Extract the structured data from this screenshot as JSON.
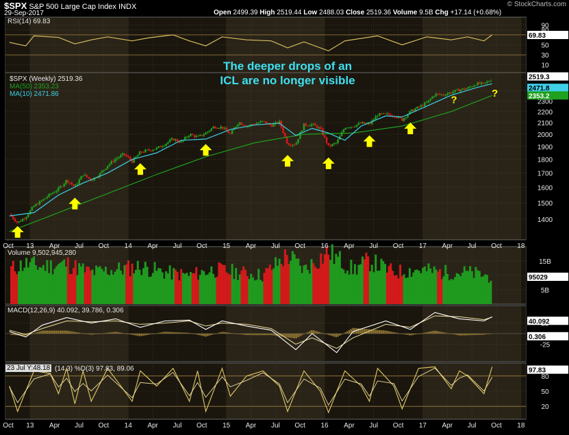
{
  "header": {
    "symbol": "$SPX",
    "name": "S&P 500 Large Cap Index",
    "exchange": "INDX",
    "date": "29-Sep-2017",
    "open_label": "Open",
    "open": "2499.39",
    "high_label": "High",
    "high": "2519.44",
    "low_label": "Low",
    "low": "2488.03",
    "close_label": "Close",
    "close": "2519.36",
    "volume_label": "Volume",
    "volume": "9.5B",
    "chg_label": "Chg",
    "chg": "+17.14 (+0.68%)",
    "watermark": "© StockCharts.com"
  },
  "annotation": {
    "line1": "The deeper drops of an",
    "line2": "ICL are no longer visible",
    "question_mark": "?"
  },
  "colors": {
    "background": "#000000",
    "panel": "#2a2418",
    "panel_alt": "#1a160e",
    "grid": "#4a4030",
    "up": "#1f9a1f",
    "down": "#d21a1a",
    "ma10": "#3fd0e8",
    "ma50": "#1fa01f",
    "indicator": "#d8c060",
    "arrow": "#ffff00",
    "annotation": "#3fe0f0",
    "axis_text": "#e8e8e8"
  },
  "x_axis": {
    "labels": [
      "Oct",
      "13",
      "Apr",
      "Jul",
      "Oct",
      "14",
      "Apr",
      "Jul",
      "Oct",
      "15",
      "Apr",
      "Jul",
      "Oct",
      "16",
      "Apr",
      "Jul",
      "Oct",
      "17",
      "Apr",
      "Jul",
      "Oct",
      "18"
    ]
  },
  "panels": {
    "rsi": {
      "label": "RSI(14) 69.83",
      "current": "69.83",
      "ticks": [
        "90",
        "80",
        "70",
        "50",
        "30",
        "10"
      ]
    },
    "price": {
      "legend_symbol": "$SPX (Weekly) 2519.36",
      "legend_ma50": "MA(50) 2353.23",
      "legend_ma10": "MA(10) 2471.86",
      "price_tag": "2519.3",
      "ma10_tag": "2471.8",
      "ma50_tag": "2353.2",
      "ticks": [
        "2400",
        "2300",
        "2200",
        "2100",
        "2000",
        "1900",
        "1800",
        "1700",
        "1600",
        "1500",
        "1400"
      ]
    },
    "volume": {
      "label": "Volume 9,502,945,280",
      "current_tag": "95029",
      "ticks": [
        "15B",
        "10B",
        "5B"
      ]
    },
    "macd": {
      "label": "MACD(12,26,9) 40.092, 39.786, 0.306",
      "macd_tag": "40.092",
      "hist_tag": "0.306",
      "ticks": [
        "25",
        "-25"
      ]
    },
    "stoch": {
      "label": "23 Jul Y:48.18",
      "label2": "(14,3) %D(3) 97.83, 89.06",
      "current_tag": "97.83",
      "ticks": [
        "80",
        "50",
        "20"
      ]
    }
  },
  "chart_data": {
    "type": "candlestick",
    "title": "$SPX S&P 500 Large Cap Index",
    "period": "Weekly",
    "y_scale": "log",
    "ylim": [
      1300,
      2560
    ],
    "x_range": [
      "2012-10",
      "2018-01"
    ],
    "price_series": {
      "name": "$SPX (Weekly)",
      "last": 2519.36,
      "points": [
        [
          "2012-10",
          1430
        ],
        [
          "2012-11",
          1380
        ],
        [
          "2012-12",
          1415
        ],
        [
          "2013-01",
          1480
        ],
        [
          "2013-02",
          1515
        ],
        [
          "2013-03",
          1555
        ],
        [
          "2013-04",
          1590
        ],
        [
          "2013-05",
          1650
        ],
        [
          "2013-06",
          1605
        ],
        [
          "2013-07",
          1690
        ],
        [
          "2013-08",
          1650
        ],
        [
          "2013-09",
          1690
        ],
        [
          "2013-10",
          1755
        ],
        [
          "2013-11",
          1805
        ],
        [
          "2013-12",
          1840
        ],
        [
          "2014-01",
          1785
        ],
        [
          "2014-02",
          1855
        ],
        [
          "2014-03",
          1870
        ],
        [
          "2014-04",
          1885
        ],
        [
          "2014-05",
          1920
        ],
        [
          "2014-06",
          1960
        ],
        [
          "2014-07",
          1935
        ],
        [
          "2014-08",
          2000
        ],
        [
          "2014-09",
          1975
        ],
        [
          "2014-10",
          2010
        ],
        [
          "2014-11",
          2065
        ],
        [
          "2014-12",
          2060
        ],
        [
          "2015-01",
          2000
        ],
        [
          "2015-02",
          2105
        ],
        [
          "2015-03",
          2070
        ],
        [
          "2015-04",
          2090
        ],
        [
          "2015-05",
          2110
        ],
        [
          "2015-06",
          2075
        ],
        [
          "2015-07",
          2105
        ],
        [
          "2015-08",
          1920
        ],
        [
          "2015-09",
          1920
        ],
        [
          "2015-10",
          2080
        ],
        [
          "2015-11",
          2085
        ],
        [
          "2015-12",
          2045
        ],
        [
          "2016-01",
          1900
        ],
        [
          "2016-02",
          1930
        ],
        [
          "2016-03",
          2060
        ],
        [
          "2016-04",
          2070
        ],
        [
          "2016-05",
          2095
        ],
        [
          "2016-06",
          2085
        ],
        [
          "2016-07",
          2170
        ],
        [
          "2016-08",
          2175
        ],
        [
          "2016-09",
          2165
        ],
        [
          "2016-10",
          2125
        ],
        [
          "2016-11",
          2200
        ],
        [
          "2016-12",
          2240
        ],
        [
          "2017-01",
          2280
        ],
        [
          "2017-02",
          2365
        ],
        [
          "2017-03",
          2360
        ],
        [
          "2017-04",
          2385
        ],
        [
          "2017-05",
          2410
        ],
        [
          "2017-06",
          2425
        ],
        [
          "2017-07",
          2470
        ],
        [
          "2017-08",
          2470
        ],
        [
          "2017-09",
          2519
        ]
      ]
    },
    "ma10": {
      "name": "MA(10)",
      "last": 2471.86,
      "points": [
        [
          "2012-10",
          1420
        ],
        [
          "2013-01",
          1440
        ],
        [
          "2013-04",
          1550
        ],
        [
          "2013-07",
          1630
        ],
        [
          "2013-10",
          1700
        ],
        [
          "2014-01",
          1800
        ],
        [
          "2014-04",
          1850
        ],
        [
          "2014-07",
          1950
        ],
        [
          "2014-10",
          1960
        ],
        [
          "2015-01",
          2040
        ],
        [
          "2015-04",
          2080
        ],
        [
          "2015-07",
          2095
        ],
        [
          "2015-09",
          1990
        ],
        [
          "2015-11",
          2050
        ],
        [
          "2016-01",
          2010
        ],
        [
          "2016-03",
          1950
        ],
        [
          "2016-05",
          2070
        ],
        [
          "2016-08",
          2160
        ],
        [
          "2016-10",
          2150
        ],
        [
          "2017-01",
          2250
        ],
        [
          "2017-04",
          2355
        ],
        [
          "2017-07",
          2430
        ],
        [
          "2017-09",
          2472
        ]
      ]
    },
    "ma50": {
      "name": "MA(50)",
      "last": 2353.23,
      "points": [
        [
          "2012-10",
          1330
        ],
        [
          "2013-04",
          1440
        ],
        [
          "2013-10",
          1560
        ],
        [
          "2014-04",
          1690
        ],
        [
          "2014-10",
          1820
        ],
        [
          "2015-04",
          1930
        ],
        [
          "2015-10",
          2000
        ],
        [
          "2016-04",
          2010
        ],
        [
          "2016-10",
          2070
        ],
        [
          "2017-04",
          2200
        ],
        [
          "2017-09",
          2353
        ]
      ]
    },
    "arrows": [
      "2012-11",
      "2013-06",
      "2014-02",
      "2014-10",
      "2015-08",
      "2016-01",
      "2016-06",
      "2016-11"
    ],
    "question_marks": [
      "2017-04",
      "2017-09"
    ],
    "rsi": {
      "name": "RSI(14)",
      "last": 69.83,
      "ylim": [
        0,
        100
      ],
      "points": [
        [
          "2012-10",
          55
        ],
        [
          "2012-12",
          48
        ],
        [
          "2013-01",
          68
        ],
        [
          "2013-04",
          65
        ],
        [
          "2013-06",
          52
        ],
        [
          "2013-08",
          60
        ],
        [
          "2013-10",
          66
        ],
        [
          "2014-01",
          58
        ],
        [
          "2014-03",
          64
        ],
        [
          "2014-06",
          70
        ],
        [
          "2014-08",
          58
        ],
        [
          "2014-10",
          48
        ],
        [
          "2014-12",
          66
        ],
        [
          "2015-03",
          60
        ],
        [
          "2015-06",
          58
        ],
        [
          "2015-08",
          44
        ],
        [
          "2015-10",
          56
        ],
        [
          "2016-01",
          38
        ],
        [
          "2016-03",
          58
        ],
        [
          "2016-07",
          68
        ],
        [
          "2016-10",
          50
        ],
        [
          "2017-01",
          66
        ],
        [
          "2017-04",
          60
        ],
        [
          "2017-06",
          66
        ],
        [
          "2017-08",
          58
        ],
        [
          "2017-09",
          70
        ]
      ]
    },
    "volume": {
      "name": "Volume",
      "last": 9502945280,
      "ylim_billions": [
        0,
        19
      ],
      "points_billions": [
        [
          "2012-10",
          12
        ],
        [
          "2012-12",
          14
        ],
        [
          "2013-02",
          13
        ],
        [
          "2013-05",
          14
        ],
        [
          "2013-08",
          11
        ],
        [
          "2013-11",
          12
        ],
        [
          "2014-02",
          13
        ],
        [
          "2014-05",
          11
        ],
        [
          "2014-08",
          10
        ],
        [
          "2014-11",
          12
        ],
        [
          "2015-02",
          11
        ],
        [
          "2015-05",
          10
        ],
        [
          "2015-08",
          17
        ],
        [
          "2015-10",
          12
        ],
        [
          "2016-01",
          18
        ],
        [
          "2016-04",
          12
        ],
        [
          "2016-06",
          15
        ],
        [
          "2016-09",
          11
        ],
        [
          "2016-12",
          12
        ],
        [
          "2017-03",
          11
        ],
        [
          "2017-06",
          11
        ],
        [
          "2017-09",
          9.5
        ]
      ]
    },
    "macd": {
      "name": "MACD(12,26,9)",
      "macd_last": 40.092,
      "signal_last": 39.786,
      "hist_last": 0.306,
      "ylim": [
        -60,
        60
      ],
      "macd_points": [
        [
          "2012-10",
          5
        ],
        [
          "2012-12",
          -8
        ],
        [
          "2013-02",
          20
        ],
        [
          "2013-05",
          38
        ],
        [
          "2013-08",
          25
        ],
        [
          "2013-11",
          35
        ],
        [
          "2014-02",
          15
        ],
        [
          "2014-05",
          30
        ],
        [
          "2014-08",
          32
        ],
        [
          "2014-10",
          10
        ],
        [
          "2014-12",
          30
        ],
        [
          "2015-03",
          18
        ],
        [
          "2015-06",
          8
        ],
        [
          "2015-09",
          -38
        ],
        [
          "2015-11",
          0
        ],
        [
          "2016-02",
          -45
        ],
        [
          "2016-04",
          5
        ],
        [
          "2016-08",
          30
        ],
        [
          "2016-11",
          10
        ],
        [
          "2017-02",
          50
        ],
        [
          "2017-05",
          35
        ],
        [
          "2017-08",
          30
        ],
        [
          "2017-09",
          40
        ]
      ],
      "signal_points": [
        [
          "2012-10",
          8
        ],
        [
          "2012-12",
          -2
        ],
        [
          "2013-02",
          12
        ],
        [
          "2013-05",
          30
        ],
        [
          "2013-08",
          28
        ],
        [
          "2013-11",
          30
        ],
        [
          "2014-02",
          22
        ],
        [
          "2014-05",
          25
        ],
        [
          "2014-08",
          30
        ],
        [
          "2014-10",
          18
        ],
        [
          "2014-12",
          25
        ],
        [
          "2015-03",
          22
        ],
        [
          "2015-06",
          12
        ],
        [
          "2015-09",
          -25
        ],
        [
          "2015-11",
          -10
        ],
        [
          "2016-02",
          -35
        ],
        [
          "2016-04",
          -10
        ],
        [
          "2016-08",
          22
        ],
        [
          "2016-11",
          15
        ],
        [
          "2017-02",
          42
        ],
        [
          "2017-05",
          40
        ],
        [
          "2017-08",
          33
        ],
        [
          "2017-09",
          39
        ]
      ]
    },
    "stoch": {
      "name": "%K(14,3) %D(3)",
      "k_last": 97.83,
      "d_last": 89.06,
      "ylim": [
        0,
        100
      ],
      "k_points": [
        [
          "2012-10",
          60
        ],
        [
          "2012-11",
          10
        ],
        [
          "2013-01",
          90
        ],
        [
          "2013-03",
          85
        ],
        [
          "2013-04",
          45
        ],
        [
          "2013-05",
          95
        ],
        [
          "2013-06",
          25
        ],
        [
          "2013-07",
          90
        ],
        [
          "2013-08",
          30
        ],
        [
          "2013-10",
          95
        ],
        [
          "2014-01",
          30
        ],
        [
          "2014-02",
          90
        ],
        [
          "2014-04",
          60
        ],
        [
          "2014-06",
          95
        ],
        [
          "2014-08",
          30
        ],
        [
          "2014-09",
          90
        ],
        [
          "2014-10",
          10
        ],
        [
          "2014-12",
          95
        ],
        [
          "2015-01",
          40
        ],
        [
          "2015-03",
          80
        ],
        [
          "2015-05",
          90
        ],
        [
          "2015-07",
          60
        ],
        [
          "2015-08",
          10
        ],
        [
          "2015-10",
          90
        ],
        [
          "2015-12",
          50
        ],
        [
          "2016-01",
          8
        ],
        [
          "2016-03",
          90
        ],
        [
          "2016-05",
          60
        ],
        [
          "2016-06",
          30
        ],
        [
          "2016-07",
          95
        ],
        [
          "2016-09",
          60
        ],
        [
          "2016-10",
          15
        ],
        [
          "2016-12",
          95
        ],
        [
          "2017-02",
          98
        ],
        [
          "2017-04",
          55
        ],
        [
          "2017-05",
          90
        ],
        [
          "2017-06",
          80
        ],
        [
          "2017-08",
          45
        ],
        [
          "2017-09",
          98
        ]
      ]
    }
  }
}
